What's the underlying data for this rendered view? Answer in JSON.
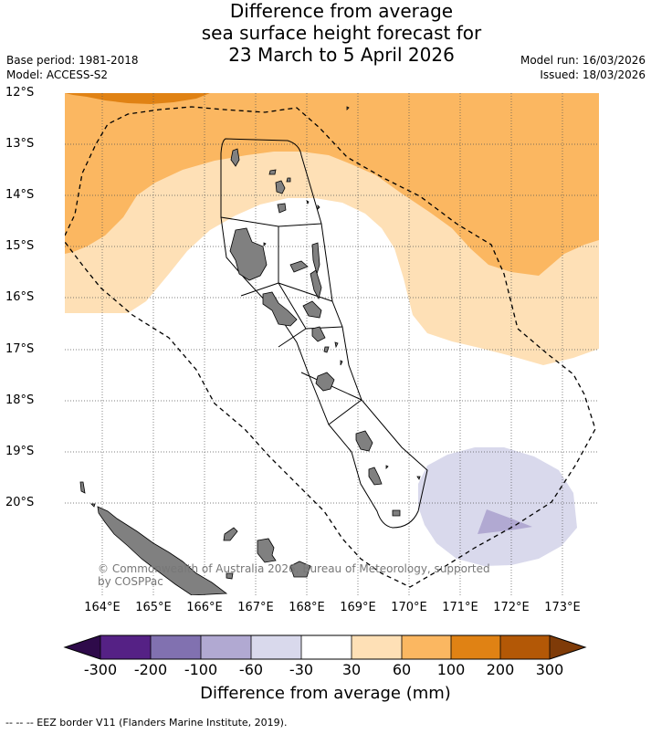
{
  "title": {
    "line1": "Difference from average",
    "line2": "sea surface height forecast for",
    "line3": "23 March to 5 April 2026"
  },
  "meta": {
    "base_period": "Base period: 1981-2018",
    "model": "Model: ACCESS-S2",
    "model_run": "Model run: 16/03/2026",
    "issued": "Issued: 18/03/2026"
  },
  "axes": {
    "lat_labels": [
      "12°S",
      "13°S",
      "14°S",
      "15°S",
      "16°S",
      "17°S",
      "18°S",
      "19°S",
      "20°S"
    ],
    "lon_labels": [
      "164°E",
      "165°E",
      "166°E",
      "167°E",
      "168°E",
      "169°E",
      "170°E",
      "171°E",
      "172°E",
      "173°E"
    ],
    "lat_range": [
      -21.8,
      -12.0
    ],
    "lon_range": [
      163.35,
      173.75
    ]
  },
  "colorbar": {
    "title": "Difference from average (mm)",
    "ticks": [
      "-300",
      "-200",
      "-100",
      "-60",
      "-30",
      "30",
      "60",
      "100",
      "200",
      "300"
    ],
    "colors": [
      "#2e0a4a",
      "#552185",
      "#8171b0",
      "#b1a9d2",
      "#d9d9ec",
      "#ffffff",
      "#fee0b6",
      "#fbb761",
      "#e08214",
      "#b35806",
      "#7f3b08"
    ]
  },
  "copyright": "© Commonwealth of Australia 2026, Bureau of Meteorology, supported by COSPPac",
  "legend": "-- -- -- EEZ border V11 (Flanders Marine Institute, 2019)."
}
